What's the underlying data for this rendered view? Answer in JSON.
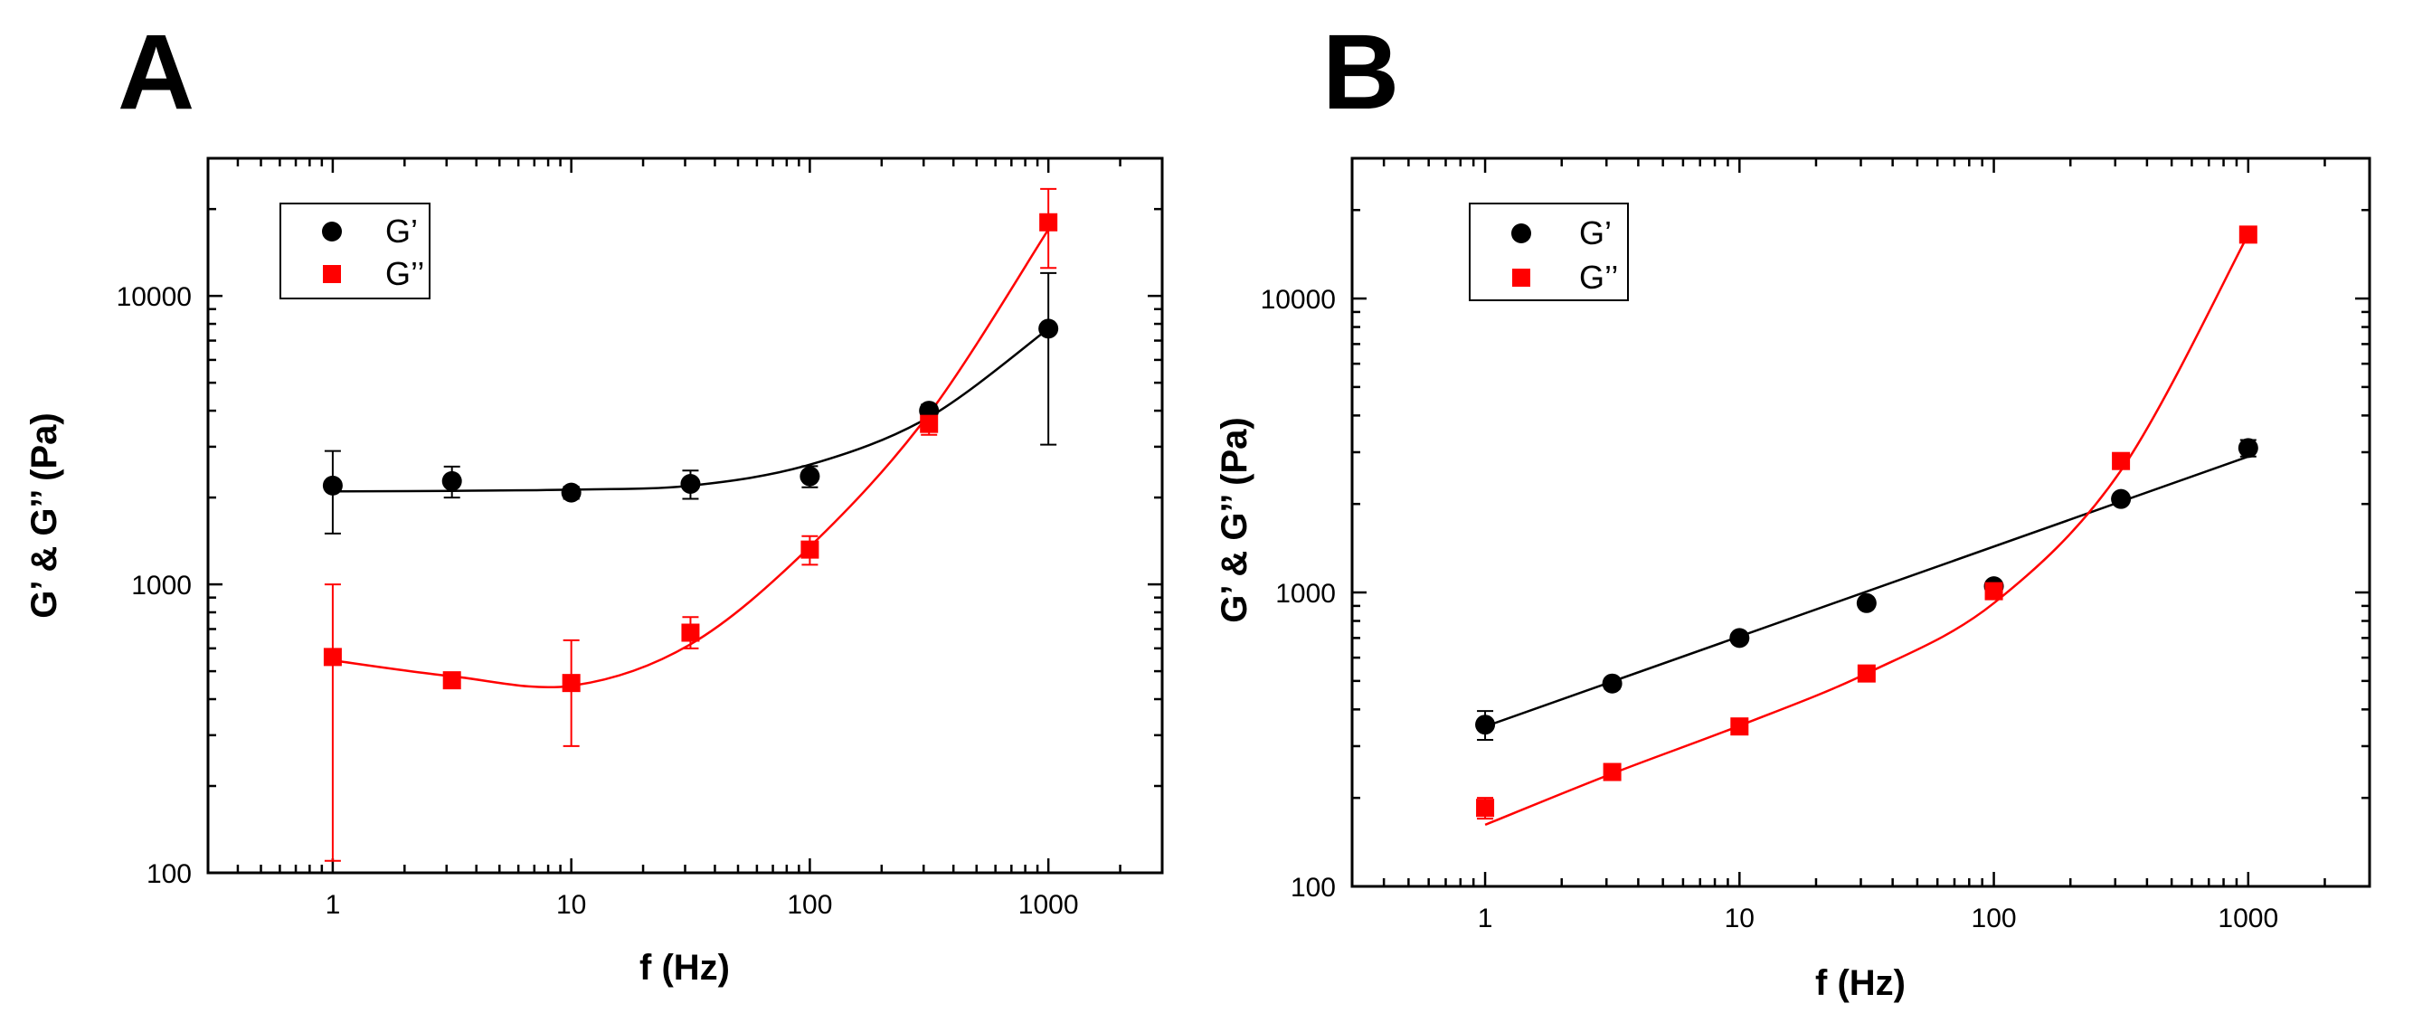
{
  "chart_data": [
    {
      "panel": "A",
      "type": "scatter",
      "xscale": "log",
      "yscale": "log",
      "xlabel": "f (Hz)",
      "ylabel": "G’ & G’’ (Pa)",
      "xlim": [
        0.3,
        3000
      ],
      "ylim": [
        100,
        30000
      ],
      "xticks": [
        1,
        10,
        100,
        1000
      ],
      "xtick_labels": [
        "1",
        "10",
        "100",
        "1000"
      ],
      "yticks": [
        100,
        1000,
        10000
      ],
      "ytick_labels": [
        "100",
        "1000",
        "10000"
      ],
      "legend": [
        "G’",
        "G’’"
      ],
      "legend_position": "top-left",
      "series": [
        {
          "name": "G’",
          "marker": "circle",
          "color": "#000000",
          "x": [
            1,
            3.16,
            10,
            31.6,
            100,
            316,
            1000
          ],
          "y": [
            2200,
            2280,
            2080,
            2230,
            2370,
            4000,
            7700
          ],
          "err_low": [
            1500,
            2000,
            1980,
            1980,
            2170,
            3700,
            3050
          ],
          "err_high": [
            2900,
            2560,
            2180,
            2480,
            2570,
            4200,
            12000
          ],
          "fit_x": [
            1,
            3.16,
            10,
            31.6,
            100,
            316,
            1000
          ],
          "fit_y": [
            2100,
            2110,
            2130,
            2200,
            2600,
            3800,
            7700
          ]
        },
        {
          "name": "G’’",
          "marker": "square",
          "color": "#ff0000",
          "x": [
            1,
            3.16,
            10,
            31.6,
            100,
            316,
            1000
          ],
          "y": [
            560,
            465,
            455,
            680,
            1320,
            3600,
            18000
          ],
          "err_low": [
            110,
            445,
            275,
            600,
            1170,
            3300,
            12500
          ],
          "err_high": [
            1000,
            485,
            640,
            770,
            1470,
            3900,
            23500
          ],
          "fit_x": [
            1,
            3.16,
            10,
            31.6,
            100,
            316,
            1000
          ],
          "fit_y": [
            545,
            480,
            445,
            620,
            1350,
            3900,
            17000
          ]
        }
      ]
    },
    {
      "panel": "B",
      "type": "scatter",
      "xscale": "log",
      "yscale": "log",
      "xlabel": "f (Hz)",
      "ylabel": "G’ & G’’ (Pa)",
      "xlim": [
        0.3,
        3000
      ],
      "ylim": [
        100,
        30000
      ],
      "xticks": [
        1,
        10,
        100,
        1000
      ],
      "xtick_labels": [
        "1",
        "10",
        "100",
        "1000"
      ],
      "yticks": [
        100,
        1000,
        10000
      ],
      "ytick_labels": [
        "100",
        "1000",
        "10000"
      ],
      "legend": [
        "G’",
        "G’’"
      ],
      "legend_position": "top-left",
      "series": [
        {
          "name": "G’",
          "marker": "circle",
          "color": "#000000",
          "x": [
            1,
            3.16,
            10,
            31.6,
            100,
            316,
            1000
          ],
          "y": [
            355,
            490,
            700,
            920,
            1050,
            2080,
            3100
          ],
          "err_low": [
            315,
            470,
            680,
            900,
            1030,
            2040,
            2900
          ],
          "err_high": [
            395,
            510,
            720,
            940,
            1070,
            2120,
            3300
          ],
          "fit_x": [
            1,
            1000
          ],
          "fit_y": [
            350,
            2900
          ]
        },
        {
          "name": "G’’",
          "marker": "square",
          "color": "#ff0000",
          "x": [
            1,
            3.16,
            10,
            31.6,
            100,
            316,
            1000
          ],
          "y": [
            185,
            245,
            350,
            530,
            1010,
            2800,
            16500
          ],
          "err_low": [
            170,
            238,
            340,
            515,
            990,
            2750,
            16200
          ],
          "err_high": [
            200,
            252,
            360,
            545,
            1030,
            2850,
            16800
          ],
          "fit_x": [
            1,
            3.16,
            10,
            31.6,
            100,
            316,
            1000
          ],
          "fit_y": [
            162,
            242,
            352,
            530,
            920,
            2600,
            16500
          ]
        }
      ]
    }
  ],
  "panels": {
    "a": {
      "letter": "A"
    },
    "b": {
      "letter": "B"
    }
  }
}
